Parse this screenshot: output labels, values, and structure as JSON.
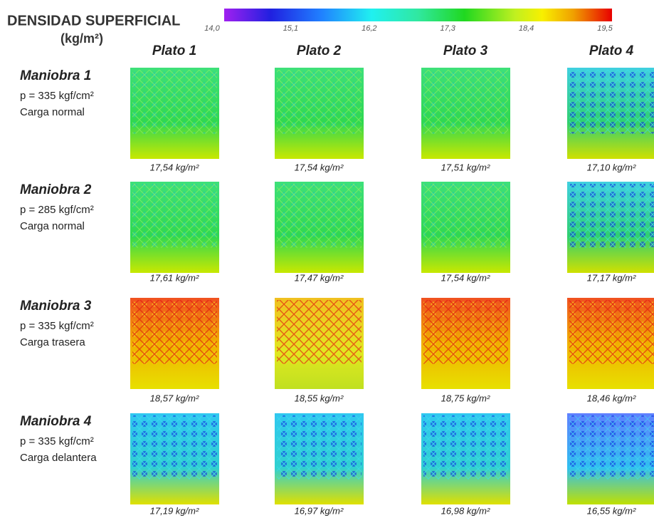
{
  "title": "DENSIDAD SUPERFICIAL",
  "unit": "(kg/m²)",
  "colorbar": {
    "ticks": [
      "14,0",
      "15,1",
      "16,2",
      "17,3",
      "18,4",
      "19,5"
    ]
  },
  "columns": [
    "Plato 1",
    "Plato 2",
    "Plato 3",
    "Plato 4"
  ],
  "rows": [
    {
      "label": "Maniobra 1",
      "pressure": "p = 335 kgf/cm²",
      "load": "Carga normal",
      "values": [
        "17,54 kg/m²",
        "17,54 kg/m²",
        "17,51 kg/m²",
        "17,10 kg/m²"
      ]
    },
    {
      "label": "Maniobra 2",
      "pressure": "p = 285 kgf/cm²",
      "load": "Carga normal",
      "values": [
        "17,61 kg/m²",
        "17,47 kg/m²",
        "17,54 kg/m²",
        "17,17 kg/m²"
      ]
    },
    {
      "label": "Maniobra 3",
      "pressure": "p = 335 kgf/cm²",
      "load": "Carga trasera",
      "values": [
        "18,57 kg/m²",
        "18,55 kg/m²",
        "18,75 kg/m²",
        "18,46 kg/m²"
      ]
    },
    {
      "label": "Maniobra 4",
      "pressure": "p = 335 kgf/cm²",
      "load": "Carga delantera",
      "values": [
        "17,19 kg/m²",
        "16,97 kg/m²",
        "16,98 kg/m²",
        "16,55 kg/m²"
      ]
    }
  ]
}
